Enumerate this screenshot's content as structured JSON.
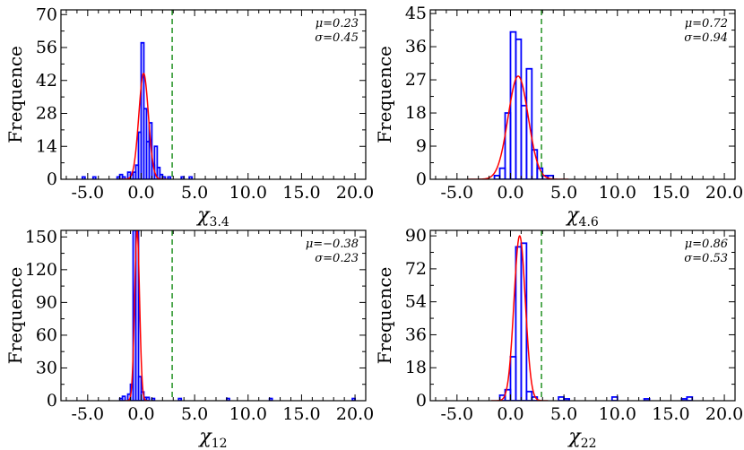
{
  "colors": {
    "histogram": "#0000ff",
    "fit": "#ff0000",
    "threshold": "#008000",
    "axis": "#000000"
  },
  "chart_data": [
    {
      "type": "bar",
      "title": "",
      "xlabel": "χ",
      "xlabel_sub": "3.4",
      "ylabel": "Frequence",
      "xlim": [
        -7.5,
        21
      ],
      "ylim": [
        0,
        72
      ],
      "xticks": [
        -5,
        0,
        5,
        10,
        15,
        20
      ],
      "xtick_labels": [
        "-5.0",
        "0.0",
        "5.0",
        "10.0",
        "15.0",
        "20.0"
      ],
      "yticks": [
        0,
        14,
        28,
        42,
        56,
        70
      ],
      "ytick_labels": [
        "0",
        "14",
        "28",
        "42",
        "56",
        "70"
      ],
      "threshold": 2.9,
      "bin_width": 0.25,
      "histogram": [
        [
          -5.5,
          1
        ],
        [
          -4.5,
          1
        ],
        [
          -2.25,
          1
        ],
        [
          -2,
          2
        ],
        [
          -1.75,
          1
        ],
        [
          -1.25,
          3
        ],
        [
          -1,
          2
        ],
        [
          -0.75,
          3
        ],
        [
          -0.5,
          6
        ],
        [
          -0.25,
          20
        ],
        [
          0,
          58
        ],
        [
          0.25,
          30
        ],
        [
          0.5,
          16
        ],
        [
          0.75,
          24
        ],
        [
          1,
          6
        ],
        [
          1.25,
          14
        ],
        [
          1.5,
          5
        ],
        [
          1.75,
          2
        ],
        [
          2,
          1
        ],
        [
          2.5,
          1
        ],
        [
          3.75,
          1
        ],
        [
          4.5,
          1
        ]
      ],
      "fit": {
        "mu": 0.23,
        "sigma": 0.45,
        "amplitude": 45
      },
      "stats": {
        "mu_label": "μ=0.23",
        "sigma_label": "σ=0.45"
      }
    },
    {
      "type": "bar",
      "title": "",
      "xlabel": "χ",
      "xlabel_sub": "4.6",
      "ylabel": "Frequence",
      "xlim": [
        -7.5,
        21
      ],
      "ylim": [
        0,
        46
      ],
      "xticks": [
        -5,
        0,
        5,
        10,
        15,
        20
      ],
      "xtick_labels": [
        "-5.0",
        "0.0",
        "5.0",
        "10.0",
        "15.0",
        "20.0"
      ],
      "yticks": [
        0,
        9,
        18,
        27,
        36,
        45
      ],
      "ytick_labels": [
        "0",
        "9",
        "18",
        "27",
        "36",
        "45"
      ],
      "threshold": 2.9,
      "bin_width": 0.5,
      "histogram": [
        [
          -1.5,
          1
        ],
        [
          -1,
          3
        ],
        [
          -0.5,
          18
        ],
        [
          0,
          40
        ],
        [
          0.5,
          38
        ],
        [
          1,
          20
        ],
        [
          1.5,
          30
        ],
        [
          2,
          8
        ],
        [
          2.5,
          3
        ],
        [
          3,
          1
        ],
        [
          3.5,
          1
        ]
      ],
      "fit": {
        "mu": 0.72,
        "sigma": 0.94,
        "amplitude": 28
      },
      "stats": {
        "mu_label": "μ=0.72",
        "sigma_label": "σ=0.94"
      }
    },
    {
      "type": "bar",
      "title": "",
      "xlabel": "χ",
      "xlabel_sub": "12",
      "ylabel": "Frequence",
      "xlim": [
        -7.5,
        21
      ],
      "ylim": [
        0,
        156
      ],
      "xticks": [
        -5,
        0,
        5,
        10,
        15,
        20
      ],
      "xtick_labels": [
        "-5.0",
        "0.0",
        "5.0",
        "10.0",
        "15.0",
        "20.0"
      ],
      "yticks": [
        0,
        30,
        60,
        90,
        120,
        150
      ],
      "ytick_labels": [
        "0",
        "30",
        "60",
        "90",
        "120",
        "150"
      ],
      "threshold": 2.9,
      "bin_width": 0.25,
      "histogram": [
        [
          -2,
          2
        ],
        [
          -1.75,
          4
        ],
        [
          -1.25,
          6
        ],
        [
          -1,
          15
        ],
        [
          -0.75,
          156
        ],
        [
          -0.5,
          156
        ],
        [
          -0.25,
          22
        ],
        [
          0,
          8
        ],
        [
          0.25,
          3
        ],
        [
          0.5,
          3
        ],
        [
          1,
          2
        ],
        [
          3.5,
          2
        ],
        [
          8,
          2
        ],
        [
          12,
          2
        ],
        [
          19.75,
          2
        ]
      ],
      "fit": {
        "mu": -0.38,
        "sigma": 0.23,
        "amplitude": 156
      },
      "stats": {
        "mu_label": "μ=−0.38",
        "sigma_label": "σ=0.23"
      }
    },
    {
      "type": "bar",
      "title": "",
      "xlabel": "χ",
      "xlabel_sub": "22",
      "ylabel": "Frequence",
      "xlim": [
        -7.5,
        21
      ],
      "ylim": [
        0,
        93
      ],
      "xticks": [
        -5,
        0,
        5,
        10,
        15,
        20
      ],
      "xtick_labels": [
        "-5.0",
        "0.0",
        "5.0",
        "10.0",
        "15.0",
        "20.0"
      ],
      "yticks": [
        0,
        18,
        36,
        54,
        72,
        90
      ],
      "ytick_labels": [
        "0",
        "18",
        "36",
        "54",
        "72",
        "90"
      ],
      "threshold": 2.9,
      "bin_width": 0.5,
      "histogram": [
        [
          -1,
          3
        ],
        [
          -0.5,
          6
        ],
        [
          0,
          24
        ],
        [
          0.5,
          84
        ],
        [
          1,
          86
        ],
        [
          1.5,
          5
        ],
        [
          2,
          2
        ],
        [
          4.5,
          2
        ],
        [
          5,
          1
        ],
        [
          9.5,
          2
        ],
        [
          12.5,
          1
        ],
        [
          16,
          1
        ],
        [
          16.5,
          2
        ]
      ],
      "fit": {
        "mu": 0.86,
        "sigma": 0.53,
        "amplitude": 90
      },
      "stats": {
        "mu_label": "μ=0.86",
        "sigma_label": "σ=0.53"
      }
    }
  ]
}
